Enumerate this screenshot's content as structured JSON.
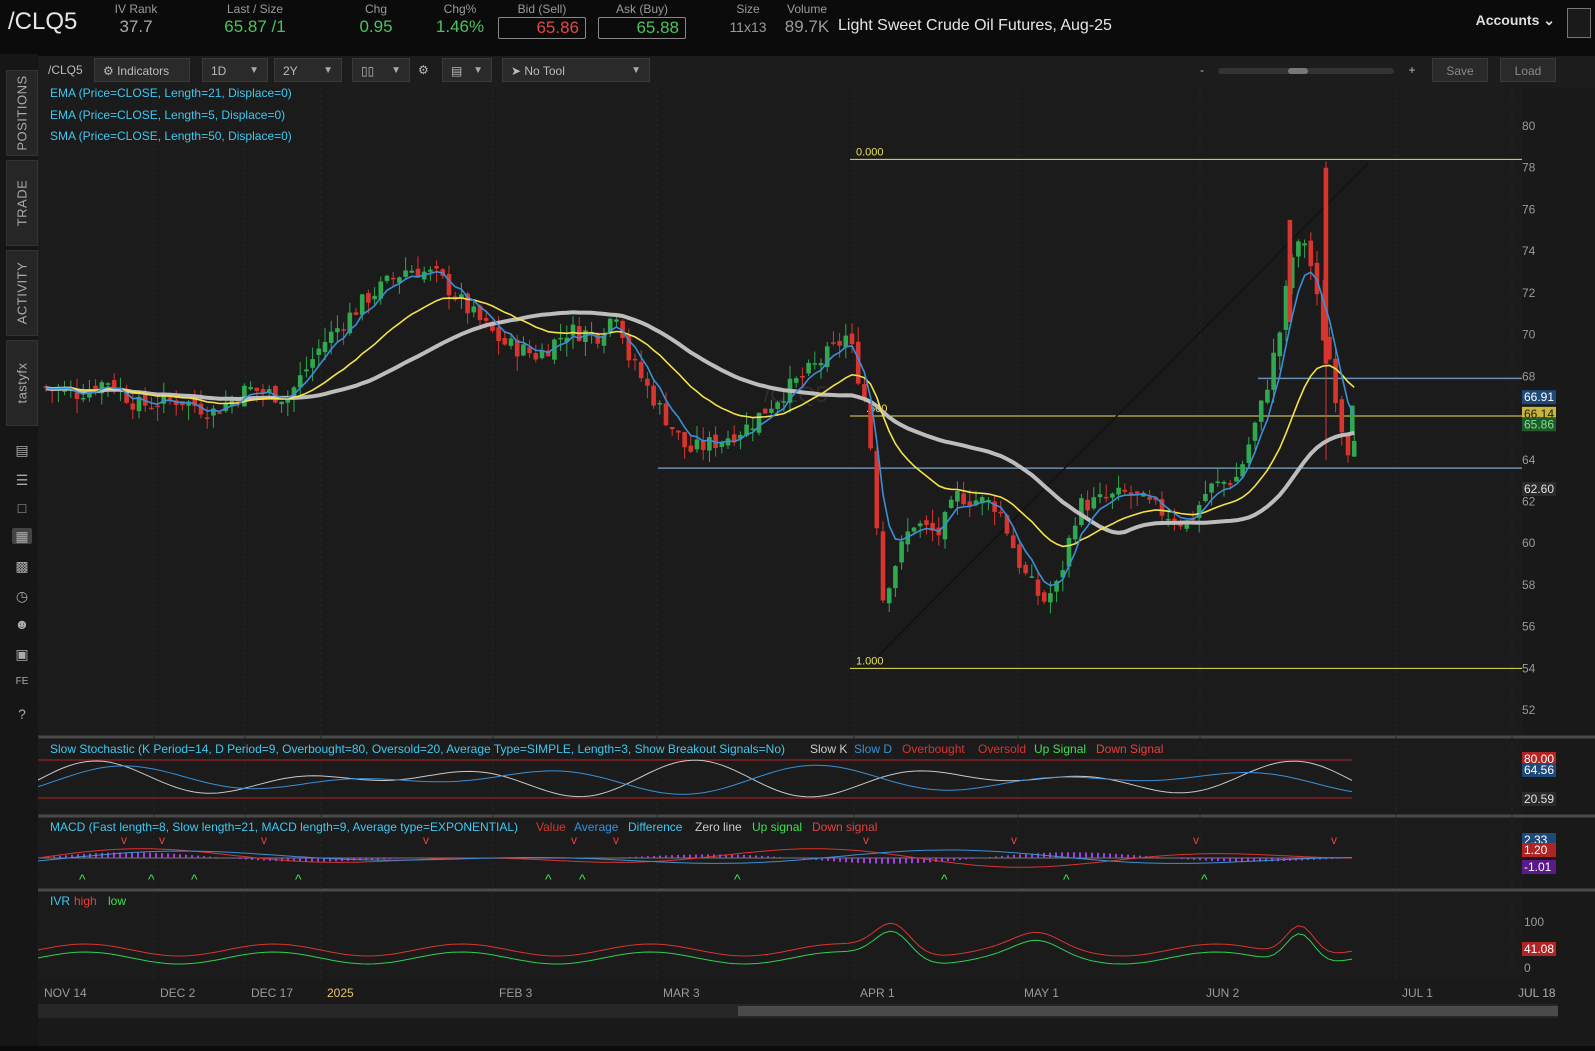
{
  "header": {
    "symbol": "/CLQ5",
    "iv_rank": {
      "label": "IV Rank",
      "value": "37.7"
    },
    "last_size": {
      "label": "Last / Size",
      "value": "65.87 /1"
    },
    "chg": {
      "label": "Chg",
      "value": "0.95"
    },
    "chg_pct": {
      "label": "Chg%",
      "value": "1.46%"
    },
    "bid": {
      "label": "Bid (Sell)",
      "value": "65.86"
    },
    "ask": {
      "label": "Ask (Buy)",
      "value": "65.88"
    },
    "size": {
      "label": "Size",
      "value": "11x13"
    },
    "volume": {
      "label": "Volume",
      "value": "89.7K"
    },
    "description": "Light Sweet Crude Oil Futures, Aug-25",
    "accounts_label": "Accounts"
  },
  "sidebar": {
    "tabs": [
      "POSITIONS",
      "TRADE",
      "ACTIVITY",
      "tastyfx"
    ]
  },
  "toolbar": {
    "symbol": "/CLQ5",
    "indicators": "Indicators",
    "interval": "1D",
    "range": "2Y",
    "tool": "No Tool",
    "zoom_minus": "-",
    "zoom_plus": "+",
    "save": "Save",
    "load": "Load"
  },
  "studies": {
    "ema21": "EMA (Price=CLOSE, Length=21, Displace=0)",
    "ema5": "EMA (Price=CLOSE, Length=5, Displace=0)",
    "sma50": "SMA (Price=CLOSE, Length=50, Displace=0)",
    "stoch": "Slow Stochastic (K Period=14, D Period=9, Overbought=80, Oversold=20, Average Type=SIMPLE, Length=3, Show Breakout Signals=No)",
    "stoch_legend": [
      "Slow K",
      "Slow D",
      "Overbought",
      "Oversold",
      "Up Signal",
      "Down Signal"
    ],
    "macd": "MACD (Fast length=8, Slow length=21, MACD length=9, Average type=EXPONENTIAL)",
    "macd_legend": [
      "Value",
      "Average",
      "Difference",
      "Zero line",
      "Up signal",
      "Down signal"
    ],
    "ivr": "IVR",
    "ivr_legend": [
      "high",
      "low"
    ]
  },
  "chart_data": {
    "type": "candlestick",
    "y_range": [
      51,
      81
    ],
    "y_ticks": [
      "80",
      "78",
      "76",
      "74",
      "72",
      "70",
      "68",
      "66",
      "64",
      "62",
      "60",
      "58",
      "56",
      "54",
      "52"
    ],
    "x_labels": [
      "NOV 14",
      "DEC 2",
      "DEC 17",
      "2025",
      "FEB 3",
      "MAR 3",
      "APR 1",
      "MAY 1",
      "JUN 2",
      "JUL 1",
      "JUL 18"
    ],
    "fib_labels": [
      "0.000",
      ".500",
      "1.000"
    ],
    "price_tags": {
      "ema5": "66.91",
      "ema21": "66.14",
      "last": "65.86",
      "sma50": "62.60"
    },
    "stoch_tags": [
      "80.00",
      "64.56",
      "20.59"
    ],
    "macd_tags": [
      "2.33",
      "1.20",
      "-1.01"
    ],
    "ivr_tags": [
      "100",
      "41.08",
      "0"
    ],
    "watermark": "/CLQ5",
    "colors": {
      "up": "#2fa84f",
      "down": "#d9352f",
      "ema5": "#3b8fd6",
      "ema21": "#f3e24a",
      "sma50": "#bdbdbd",
      "fib": "#e8e05a",
      "hline": "#6a8fb0"
    }
  }
}
